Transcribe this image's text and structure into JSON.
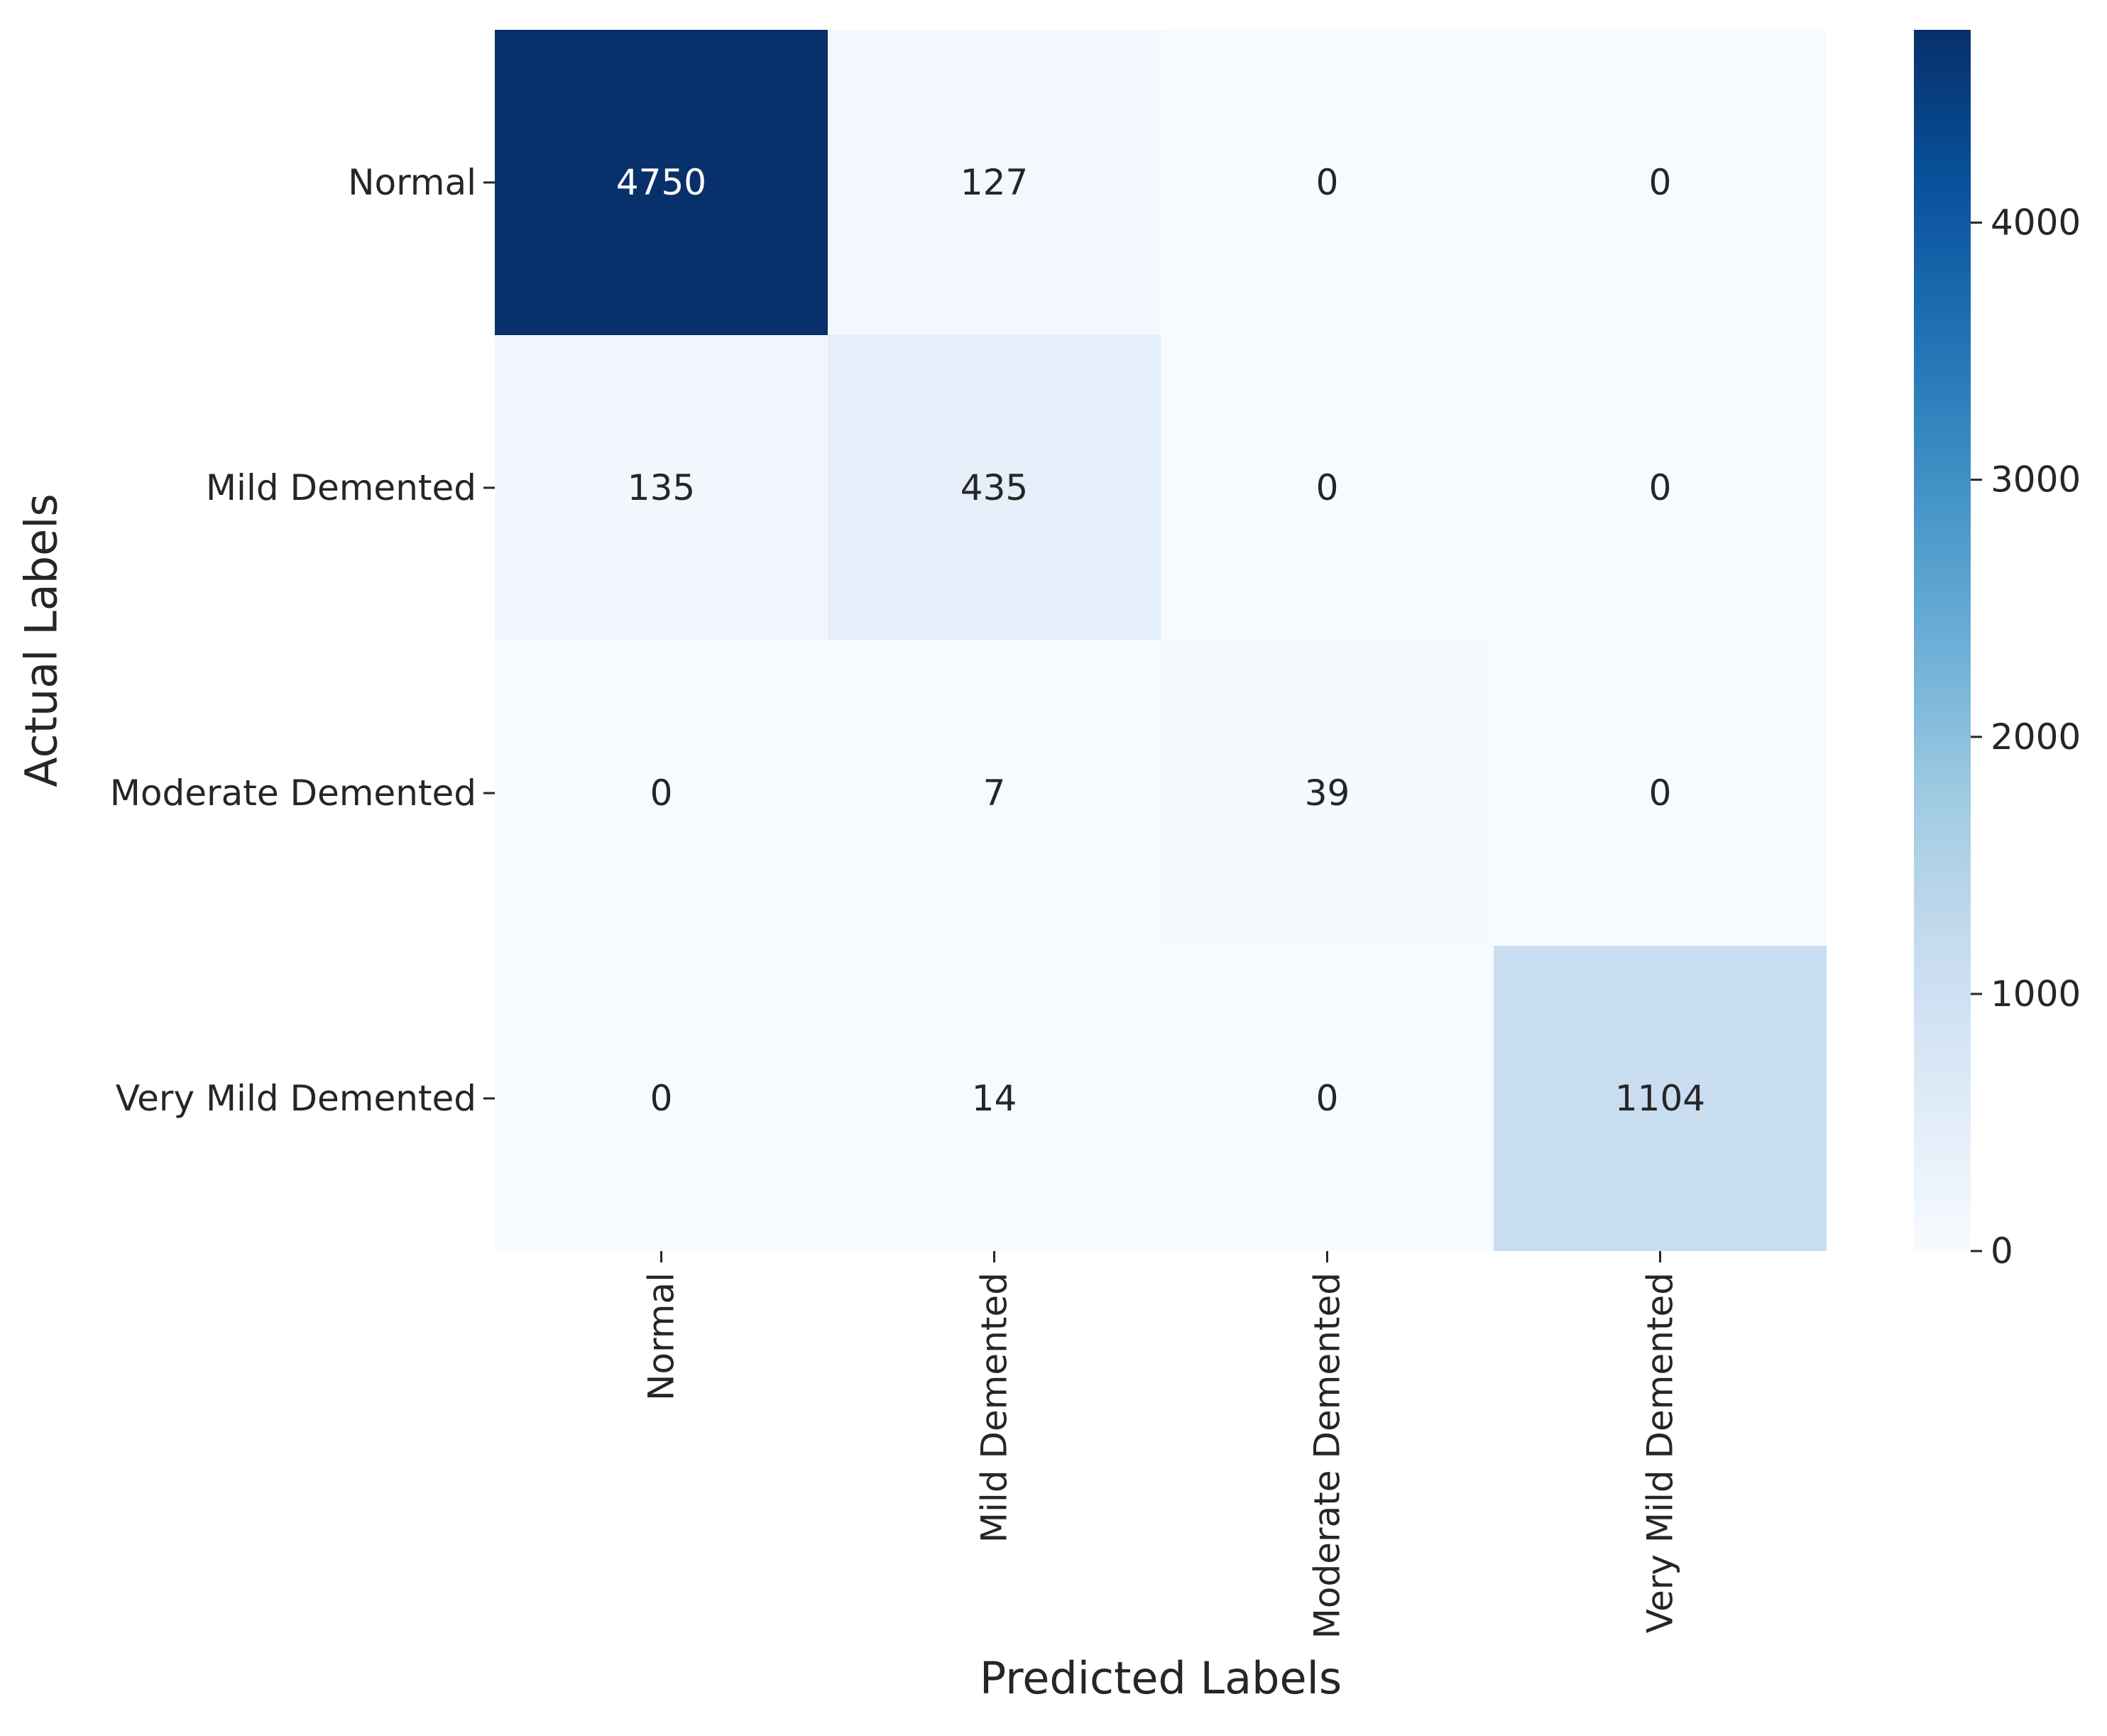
{
  "chart_data": {
    "type": "heatmap",
    "title": "",
    "xlabel": "Predicted Labels",
    "ylabel": "Actual Labels",
    "x_categories": [
      "Normal",
      "Mild Demented",
      "Moderate Demented",
      "Very Mild Demented"
    ],
    "y_categories": [
      "Normal",
      "Mild Demented",
      "Moderate Demented",
      "Very Mild Demented"
    ],
    "values": [
      [
        4750,
        127,
        0,
        0
      ],
      [
        135,
        435,
        0,
        0
      ],
      [
        0,
        7,
        39,
        0
      ],
      [
        0,
        14,
        0,
        1104
      ]
    ],
    "colorbar": {
      "range": [
        0,
        4750
      ],
      "ticks": [
        0,
        1000,
        2000,
        3000,
        4000
      ],
      "colormap": "Blues",
      "colors": [
        "#f7fbff",
        "#deebf7",
        "#c6dbef",
        "#9ecae1",
        "#6baed6",
        "#4292c6",
        "#2171b5",
        "#08519c",
        "#08306b"
      ]
    },
    "annotation_text_colors": {
      "light": "#ffffff",
      "dark": "#262626"
    },
    "grid": false
  }
}
